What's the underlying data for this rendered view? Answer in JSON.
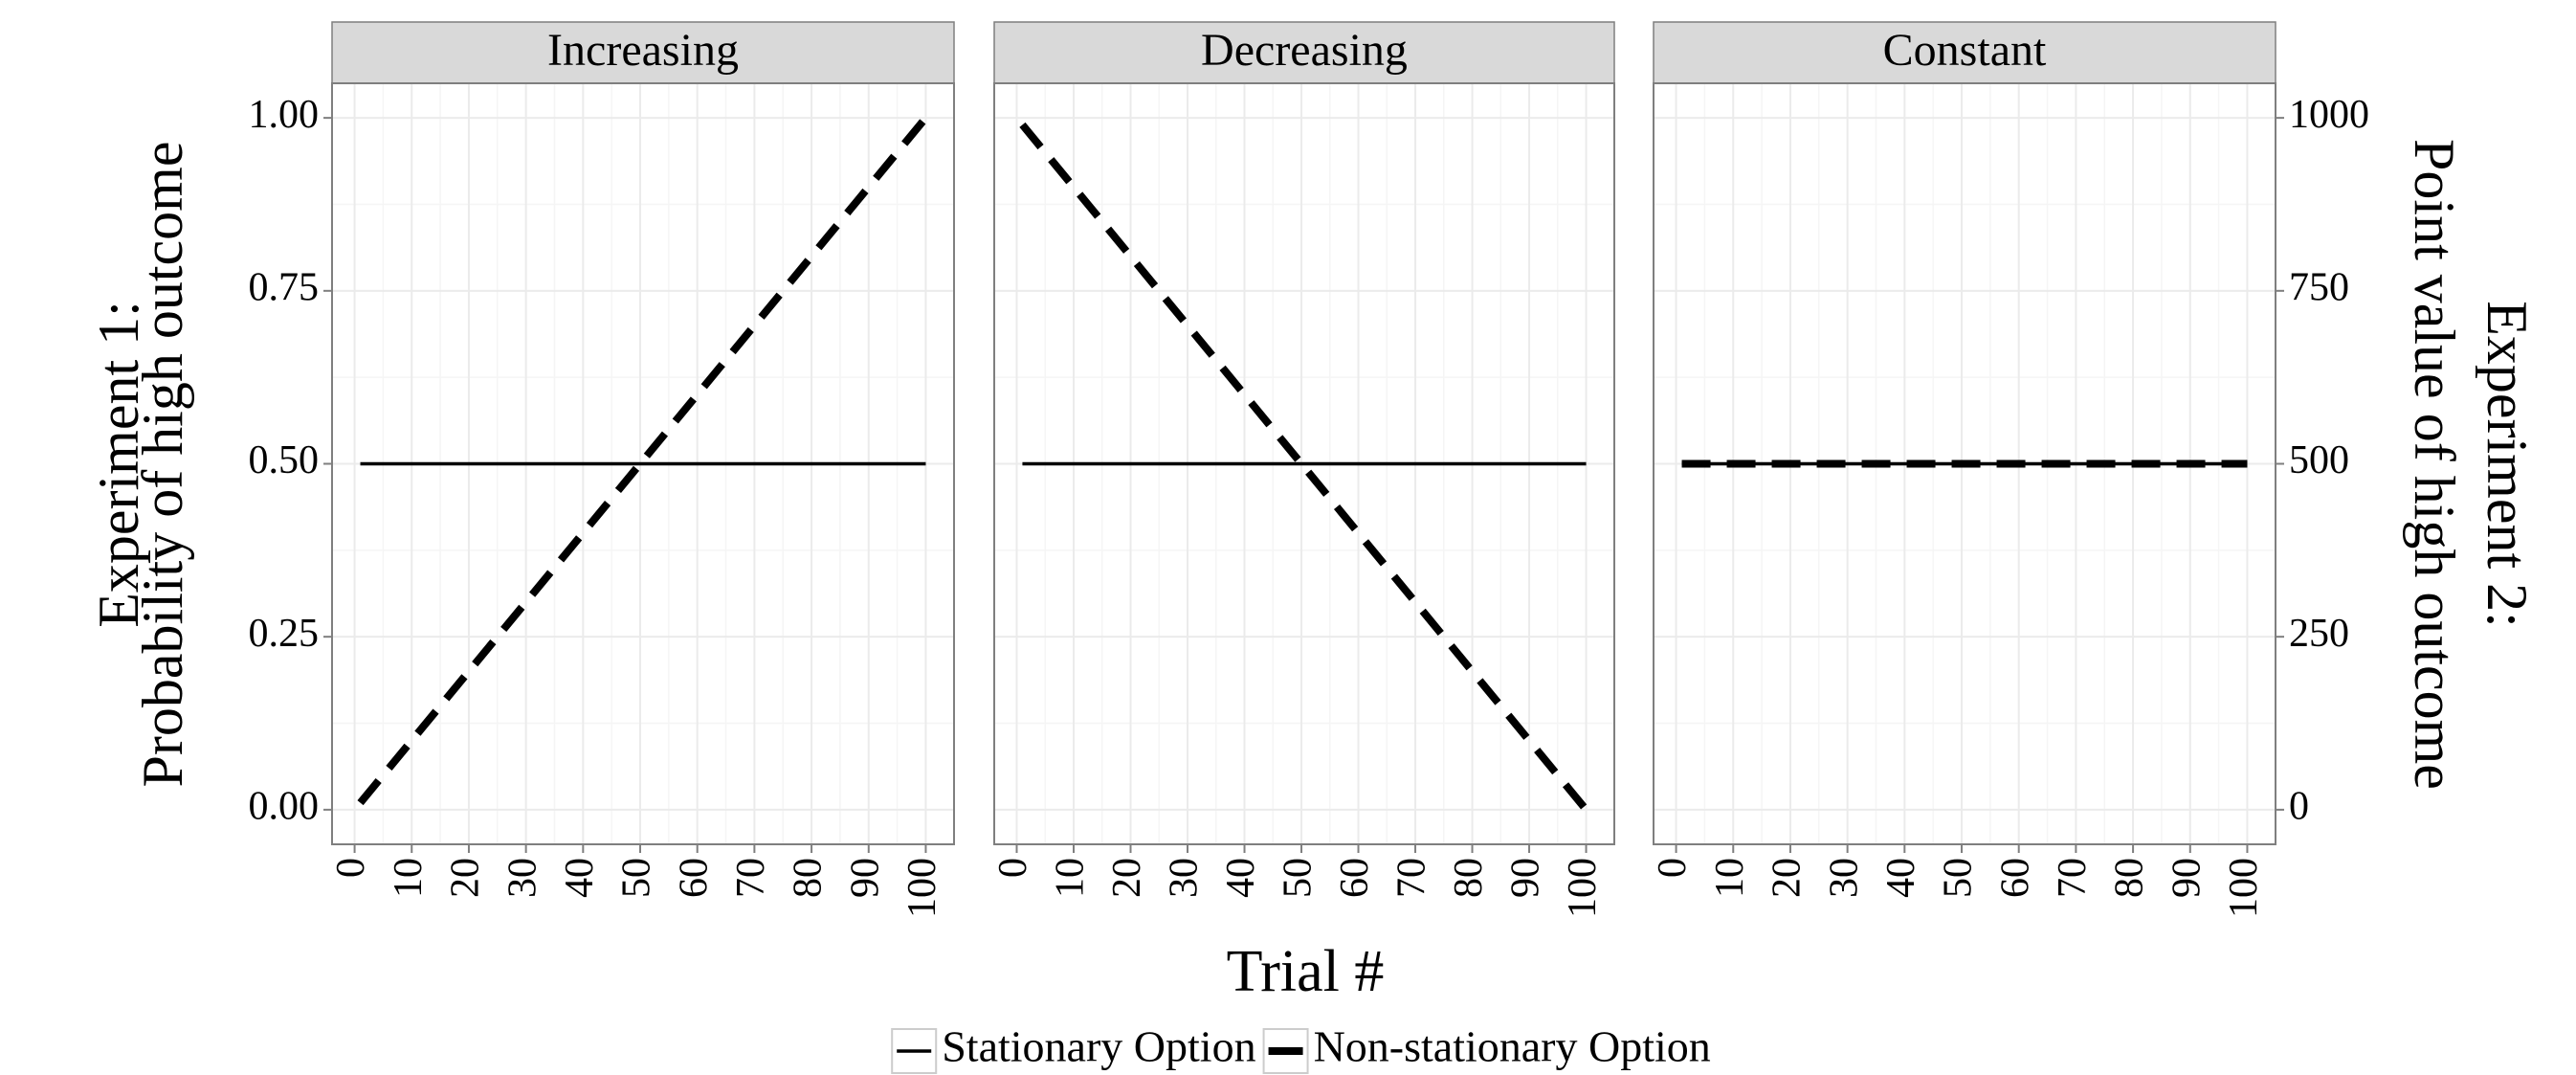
{
  "chart_data": {
    "type": "line",
    "x": [
      1,
      100
    ],
    "xlim": [
      -3.95,
      104.95
    ],
    "xticks": [
      0,
      10,
      20,
      30,
      40,
      50,
      60,
      70,
      80,
      90,
      100
    ],
    "ylim": [
      -0.05,
      1.05
    ],
    "yticks": [
      {
        "value": 0,
        "label": "0.00"
      },
      {
        "value": 0.25,
        "label": "0.25"
      },
      {
        "value": 0.5,
        "label": "0.50"
      },
      {
        "value": 0.75,
        "label": "0.75"
      },
      {
        "value": 1,
        "label": "1.00"
      }
    ],
    "y2lim": [
      -50,
      1050
    ],
    "y2ticks": [
      0,
      250,
      500,
      750,
      1000
    ],
    "xlabel": "Trial #",
    "ylabel": [
      "Experiment 1:",
      "Probability of high outcome"
    ],
    "y2label": [
      "Experiment 2:",
      "Point value of high outcome"
    ],
    "grid": true,
    "legend": "bottom",
    "series": [
      {
        "name": "Stationary Option",
        "color": "#000000",
        "dash": "solid"
      },
      {
        "name": "Non-stationary Option",
        "color": "#000000",
        "dash": "dashed"
      }
    ],
    "facets": [
      {
        "title": "Increasing",
        "series": [
          {
            "values": [
              0.5,
              0.5
            ]
          },
          {
            "values": [
              0.01,
              1.0
            ]
          }
        ]
      },
      {
        "title": "Decreasing",
        "series": [
          {
            "values": [
              0.5,
              0.5
            ]
          },
          {
            "values": [
              0.99,
              0.0
            ]
          }
        ]
      },
      {
        "title": "Constant",
        "series": [
          {
            "values": [
              0.5,
              0.5
            ]
          },
          {
            "values": [
              0.5,
              0.5
            ]
          }
        ]
      }
    ]
  }
}
